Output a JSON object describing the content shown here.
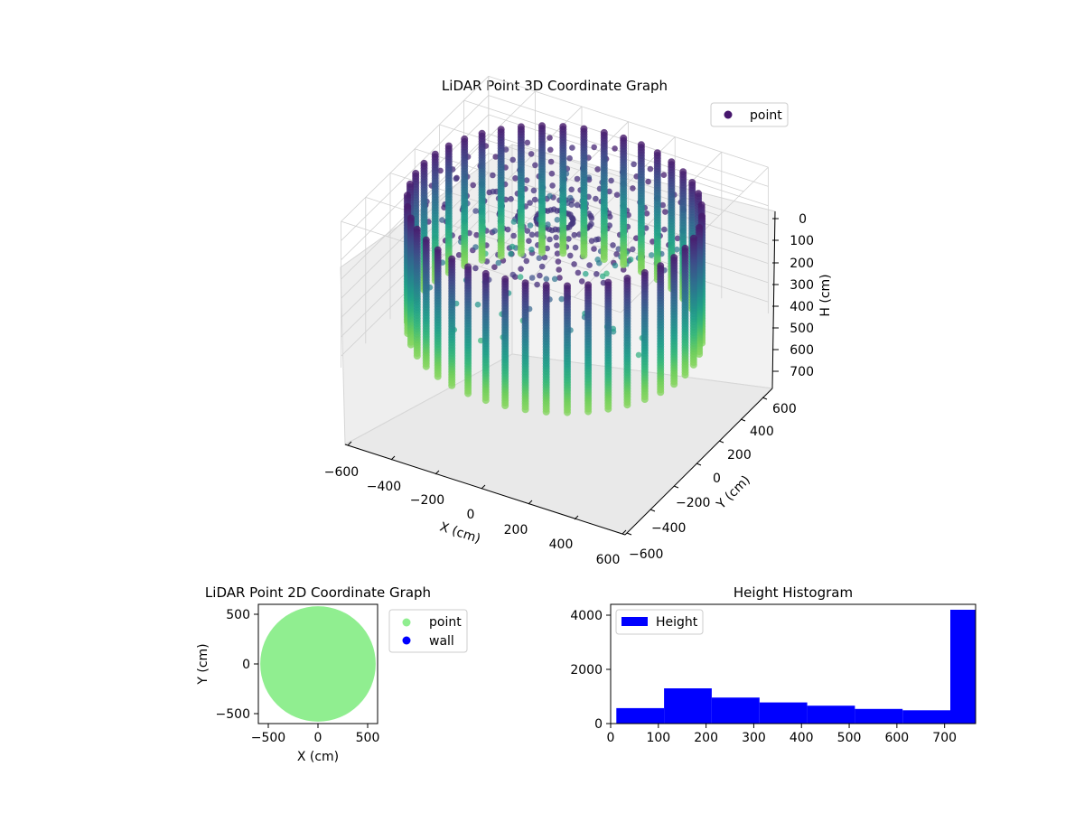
{
  "chart_data": [
    {
      "type": "scatter3d",
      "title": "LiDAR Point 3D Coordinate Graph",
      "xlabel": "X (cm)",
      "ylabel": "Y (cm)",
      "zlabel": "H (cm)",
      "xlim": [
        -600,
        600
      ],
      "ylim": [
        -600,
        600
      ],
      "zlim": [
        0,
        760
      ],
      "z_inverted": true,
      "xticks": [
        "−600",
        "−400",
        "−200",
        "0",
        "200",
        "400",
        "600"
      ],
      "yticks": [
        "−600",
        "−400",
        "−200",
        "0",
        "200",
        "400",
        "600"
      ],
      "zticks": [
        "0",
        "100",
        "200",
        "300",
        "400",
        "500",
        "600",
        "700"
      ],
      "legend": [
        "point"
      ],
      "legend_placement": "top-right",
      "colormap": "viridis (by height)",
      "grid": true,
      "series": [
        {
          "name": "point",
          "description_values": {
            "wall_radius_cm": 560,
            "wall_columns": 44,
            "wall_height_range_cm": [
              60,
              730
            ],
            "ceiling_spokes": 36
          }
        }
      ]
    },
    {
      "type": "scatter",
      "title": "LiDAR Point 2D Coordinate Graph",
      "xlabel": "X (cm)",
      "ylabel": "Y (cm)",
      "xlim": [
        -620,
        620
      ],
      "ylim": [
        -620,
        620
      ],
      "xticks": [
        "−500",
        "0",
        "500"
      ],
      "yticks": [
        "−500",
        "0",
        "500"
      ],
      "legend_placement": "outside-right",
      "series": [
        {
          "name": "point",
          "color": "#90ee90",
          "region": "filled disk",
          "radius": 600
        },
        {
          "name": "wall",
          "color": "#0000ff",
          "points": []
        }
      ]
    },
    {
      "type": "bar",
      "title": "Height Histogram",
      "xlim": [
        0,
        765
      ],
      "ylim": [
        0,
        4400
      ],
      "xticks": [
        "0",
        "100",
        "200",
        "300",
        "400",
        "500",
        "600",
        "700"
      ],
      "yticks": [
        "0",
        "2000",
        "4000"
      ],
      "legend": [
        "Height"
      ],
      "legend_placement": "top-left",
      "color": "#0000ff",
      "bins": [
        {
          "x0": 12,
          "x1": 112,
          "count": 570
        },
        {
          "x0": 112,
          "x1": 212,
          "count": 1300
        },
        {
          "x0": 212,
          "x1": 312,
          "count": 960
        },
        {
          "x0": 312,
          "x1": 412,
          "count": 780
        },
        {
          "x0": 412,
          "x1": 512,
          "count": 660
        },
        {
          "x0": 512,
          "x1": 612,
          "count": 540
        },
        {
          "x0": 612,
          "x1": 712,
          "count": 490
        },
        {
          "x0": 712,
          "x1": 765,
          "count": 4200
        }
      ]
    }
  ]
}
